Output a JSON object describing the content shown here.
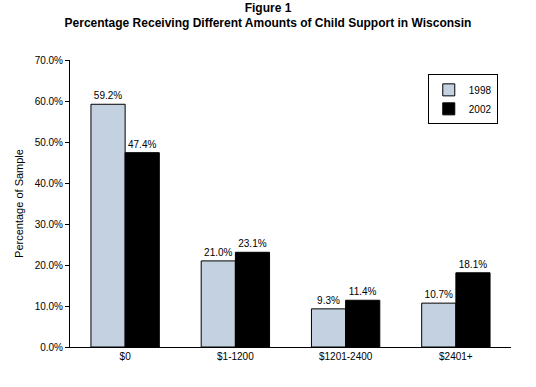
{
  "chart_data": {
    "type": "bar",
    "title": "Figure 1",
    "subtitle": "Percentage Receiving Different Amounts of Child Support in Wisconsin",
    "y_label": "Percentage of Sample",
    "categories": [
      "$0",
      "$1-1200",
      "$1201-2400",
      "$2401+"
    ],
    "series": [
      {
        "name": "1998",
        "color": "#C3D1E0",
        "values": [
          59.2,
          21.0,
          9.3,
          10.7
        ],
        "value_labels": [
          "59.2%",
          "21.0%",
          "9.3%",
          "10.7%"
        ]
      },
      {
        "name": "2002",
        "color": "#000000",
        "values": [
          47.4,
          23.1,
          11.4,
          18.1
        ],
        "value_labels": [
          "47.4%",
          "23.1%",
          "11.4%",
          "18.1%"
        ]
      }
    ],
    "ylim": [
      0,
      70
    ],
    "yticks": [
      {
        "value": 0,
        "label": "0.0%"
      },
      {
        "value": 10,
        "label": "10.0%"
      },
      {
        "value": 20,
        "label": "20.0%"
      },
      {
        "value": 30,
        "label": "30.0%"
      },
      {
        "value": 40,
        "label": "40.0%"
      },
      {
        "value": 50,
        "label": "50.0%"
      },
      {
        "value": 60,
        "label": "60.0%"
      },
      {
        "value": 70,
        "label": "70.0%"
      }
    ],
    "grid": false,
    "legend": "upper right",
    "data_labels": true
  }
}
